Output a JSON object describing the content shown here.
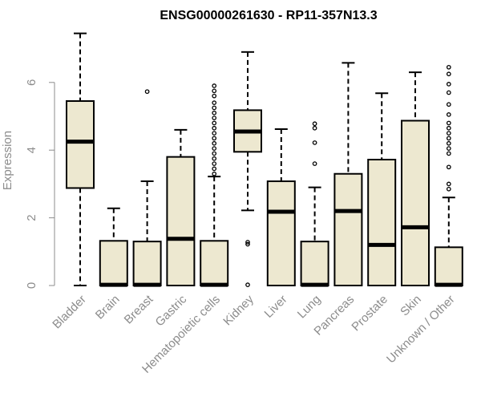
{
  "chart_data": {
    "type": "boxplot",
    "title": "ENSG00000261630 - RP11-357N13.3",
    "ylabel": "Expression",
    "xlabel": "",
    "ylim": [
      0,
      7.5
    ],
    "yticks": [
      0,
      2,
      4,
      6
    ],
    "grid": false,
    "colors": {
      "box_fill": "#ede8d0",
      "stroke": "#000000",
      "axis": "#8c8c8c"
    },
    "categories": [
      "Bladder",
      "Brain",
      "Breast",
      "Gastric",
      "Hematopoietic cells",
      "Kidney",
      "Liver",
      "Lung",
      "Pancreas",
      "Prostate",
      "Skin",
      "Unknown / Other"
    ],
    "boxes": [
      {
        "category": "Bladder",
        "min": 0,
        "q1": 2.88,
        "median": 4.25,
        "q3": 5.45,
        "max": 7.45,
        "outliers": []
      },
      {
        "category": "Brain",
        "min": 0,
        "q1": 0,
        "median": 0.02,
        "q3": 1.32,
        "max": 2.28,
        "outliers": []
      },
      {
        "category": "Breast",
        "min": 0,
        "q1": 0,
        "median": 0.02,
        "q3": 1.3,
        "max": 3.08,
        "outliers": [
          5.73
        ]
      },
      {
        "category": "Gastric",
        "min": 0,
        "q1": 0,
        "median": 1.38,
        "q3": 3.8,
        "max": 4.6,
        "outliers": []
      },
      {
        "category": "Hematopoietic cells",
        "min": 0,
        "q1": 0,
        "median": 0.02,
        "q3": 1.32,
        "max": 3.22,
        "outliers": [
          3.3,
          3.45,
          3.6,
          3.75,
          3.9,
          4.05,
          4.2,
          4.35,
          4.5,
          4.65,
          4.8,
          4.95,
          5.1,
          5.25,
          5.4,
          5.6,
          5.75,
          5.9
        ]
      },
      {
        "category": "Kidney",
        "min": 2.22,
        "q1": 3.95,
        "median": 4.55,
        "q3": 5.18,
        "max": 6.9,
        "outliers": [
          0.02,
          1.22,
          1.28
        ]
      },
      {
        "category": "Liver",
        "min": 0,
        "q1": 0,
        "median": 2.18,
        "q3": 3.08,
        "max": 4.62,
        "outliers": []
      },
      {
        "category": "Lung",
        "min": 0,
        "q1": 0,
        "median": 0.02,
        "q3": 1.3,
        "max": 2.9,
        "outliers": [
          3.6,
          4.22,
          4.65,
          4.78
        ]
      },
      {
        "category": "Pancreas",
        "min": 0,
        "q1": 0,
        "median": 2.2,
        "q3": 3.3,
        "max": 6.58,
        "outliers": []
      },
      {
        "category": "Prostate",
        "min": 0,
        "q1": 0,
        "median": 1.2,
        "q3": 3.72,
        "max": 5.68,
        "outliers": []
      },
      {
        "category": "Skin",
        "min": 0,
        "q1": 0,
        "median": 1.72,
        "q3": 4.87,
        "max": 6.3,
        "outliers": []
      },
      {
        "category": "Unknown / Other",
        "min": 0,
        "q1": 0,
        "median": 0.02,
        "q3": 1.13,
        "max": 2.6,
        "outliers": [
          2.85,
          3.0,
          3.5,
          3.9,
          4.05,
          4.2,
          4.35,
          4.5,
          4.65,
          4.8,
          5.05,
          5.35,
          5.7,
          5.95,
          6.25,
          6.45
        ]
      }
    ]
  }
}
